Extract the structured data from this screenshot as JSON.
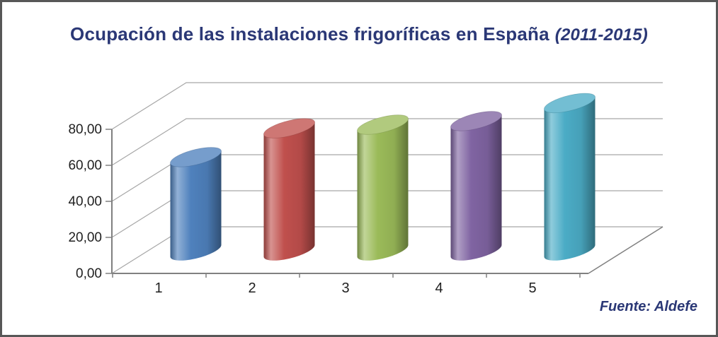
{
  "frame": {
    "border_color": "#575757",
    "background": "#ffffff"
  },
  "title": {
    "main": "Ocupación de las instalaciones frigoríficas en España",
    "period": "(2011-2015)",
    "color": "#2B3876"
  },
  "source_label": {
    "text": "Fuente: Aldefe",
    "color": "#2B3876"
  },
  "chart_data": {
    "type": "bar",
    "style": "3d-cylinder",
    "title": "Ocupación de las instalaciones frigoríficas en España (2011-2015)",
    "categories": [
      "1",
      "2",
      "3",
      "4",
      "5"
    ],
    "values": [
      52,
      68,
      70,
      72,
      82
    ],
    "series_colors": [
      "#4F81BD",
      "#C0504D",
      "#9BBB59",
      "#8064A2",
      "#4BACC6"
    ],
    "xlabel": "",
    "ylabel": "",
    "ylim": [
      0,
      80
    ],
    "yticks": [
      0,
      20,
      40,
      60,
      80
    ],
    "ytick_labels": [
      "0,00",
      "20,00",
      "40,00",
      "60,00",
      "80,00"
    ],
    "grid": true,
    "legend": false,
    "grid_color": "#A6A6A6",
    "axis_color": "#808080",
    "tick_label_color": "#1F1F1F",
    "source": "Fuente: Aldefe"
  }
}
